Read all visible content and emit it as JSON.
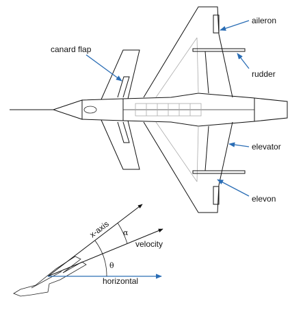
{
  "labels": {
    "aileron": "aileron",
    "rudder": "rudder",
    "canard_flap": "canard flap",
    "elevator": "elevator",
    "elevon": "elevon",
    "x_axis": "x-axis",
    "velocity": "velocity",
    "horizontal": "horizontal",
    "alpha": "α",
    "theta": "θ"
  },
  "colors": {
    "line": "#111111",
    "callout": "#2a6db5",
    "hidden_structure": "#aaaaaa"
  }
}
